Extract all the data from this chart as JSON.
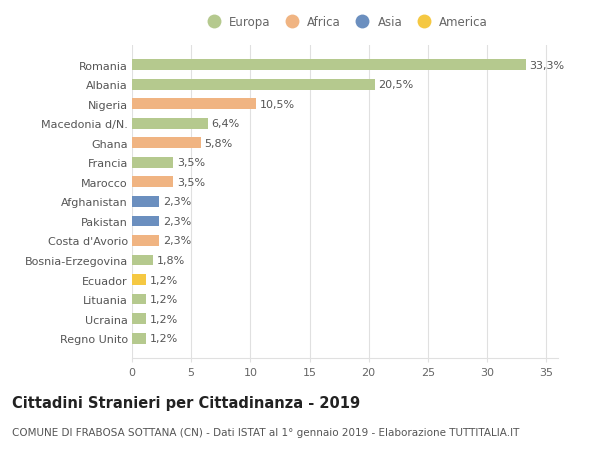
{
  "countries": [
    "Romania",
    "Albania",
    "Nigeria",
    "Macedonia d/N.",
    "Ghana",
    "Francia",
    "Marocco",
    "Afghanistan",
    "Pakistan",
    "Costa d'Avorio",
    "Bosnia-Erzegovina",
    "Ecuador",
    "Lituania",
    "Ucraina",
    "Regno Unito"
  ],
  "values": [
    33.3,
    20.5,
    10.5,
    6.4,
    5.8,
    3.5,
    3.5,
    2.3,
    2.3,
    2.3,
    1.8,
    1.2,
    1.2,
    1.2,
    1.2
  ],
  "labels": [
    "33,3%",
    "20,5%",
    "10,5%",
    "6,4%",
    "5,8%",
    "3,5%",
    "3,5%",
    "2,3%",
    "2,3%",
    "2,3%",
    "1,8%",
    "1,2%",
    "1,2%",
    "1,2%",
    "1,2%"
  ],
  "continents": [
    "Europa",
    "Europa",
    "Africa",
    "Europa",
    "Africa",
    "Europa",
    "Africa",
    "Asia",
    "Asia",
    "Africa",
    "Europa",
    "America",
    "Europa",
    "Europa",
    "Europa"
  ],
  "colors": {
    "Europa": "#b5c98e",
    "Africa": "#f0b482",
    "Asia": "#6b8fbf",
    "America": "#f5c842"
  },
  "legend_order": [
    "Europa",
    "Africa",
    "Asia",
    "America"
  ],
  "title": "Cittadini Stranieri per Cittadinanza - 2019",
  "subtitle": "COMUNE DI FRABOSA SOTTANA (CN) - Dati ISTAT al 1° gennaio 2019 - Elaborazione TUTTITALIA.IT",
  "xlim": [
    0,
    36
  ],
  "xticks": [
    0,
    5,
    10,
    15,
    20,
    25,
    30,
    35
  ],
  "background_color": "#ffffff",
  "grid_color": "#e0e0e0",
  "bar_height": 0.55,
  "label_fontsize": 8,
  "tick_fontsize": 8,
  "title_fontsize": 10.5,
  "subtitle_fontsize": 7.5
}
